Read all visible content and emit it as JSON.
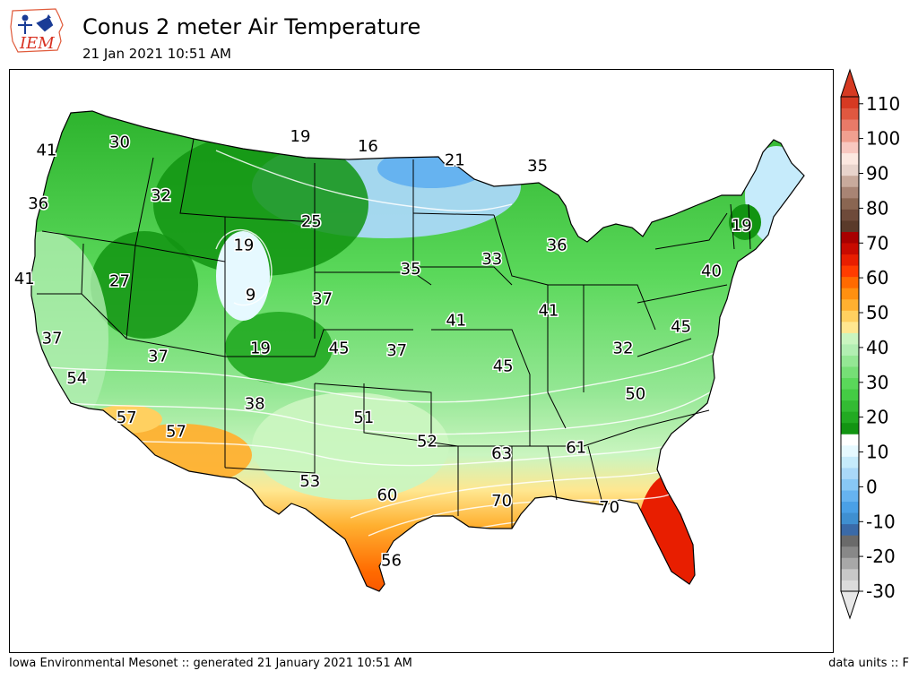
{
  "header": {
    "logo_text": "IEM",
    "title": "Conus 2 meter Air Temperature",
    "subtitle": "21 Jan 2021 10:51 AM"
  },
  "footer": {
    "left": "Iowa Environmental Mesonet :: generated 21 January 2021 10:51 AM",
    "right": "data units :: F"
  },
  "colorbar": {
    "tick_labels": [
      "110",
      "100",
      "90",
      "80",
      "70",
      "60",
      "50",
      "40",
      "30",
      "20",
      "10",
      "0",
      "-10",
      "-20",
      "-30"
    ],
    "colors": [
      "#dcdcdc",
      "#c8c8c8",
      "#a8a8a8",
      "#888888",
      "#6a6a6a",
      "#3a6aa8",
      "#3f8fd0",
      "#4aa0e6",
      "#66b3f0",
      "#88c8f5",
      "#aad8f8",
      "#c6ebfb",
      "#e6f9ff",
      "#ffffff",
      "#129412",
      "#22aa22",
      "#33bb33",
      "#44cc44",
      "#5ad85a",
      "#76df76",
      "#94e794",
      "#b2eeb2",
      "#caf5c0",
      "#ffe790",
      "#ffd060",
      "#ffb030",
      "#ff9010",
      "#ff6a00",
      "#ff3c00",
      "#e81e00",
      "#c80a00",
      "#a80000",
      "#5a3a2a",
      "#6e4a3a",
      "#8a6652",
      "#a88474",
      "#c8aa9c",
      "#e8d4cc",
      "#fce8e0",
      "#f8c8c0",
      "#f0a090",
      "#e87a68",
      "#e05840",
      "#d63a22"
    ]
  },
  "chart_data": {
    "type": "map",
    "title": "Conus 2 meter Air Temperature",
    "units": "F",
    "colorbar_range": [
      -30,
      120
    ],
    "station_values": [
      {
        "value": "41",
        "lon": -122.6,
        "lat": 47.3
      },
      {
        "value": "30",
        "lon": -117.3,
        "lat": 47.7
      },
      {
        "value": "19",
        "lon": -104.2,
        "lat": 48.0
      },
      {
        "value": "16",
        "lon": -99.3,
        "lat": 47.5
      },
      {
        "value": "21",
        "lon": -93.0,
        "lat": 46.8
      },
      {
        "value": "35",
        "lon": -87.0,
        "lat": 46.5
      },
      {
        "value": "36",
        "lon": -123.2,
        "lat": 44.6
      },
      {
        "value": "32",
        "lon": -114.3,
        "lat": 45.0
      },
      {
        "value": "19",
        "lon": -72.2,
        "lat": 43.5
      },
      {
        "value": "41",
        "lon": -124.2,
        "lat": 40.8
      },
      {
        "value": "25",
        "lon": -103.4,
        "lat": 43.7
      },
      {
        "value": "19",
        "lon": -108.3,
        "lat": 42.5
      },
      {
        "value": "35",
        "lon": -96.2,
        "lat": 41.3
      },
      {
        "value": "33",
        "lon": -90.3,
        "lat": 41.8
      },
      {
        "value": "36",
        "lon": -85.6,
        "lat": 42.5
      },
      {
        "value": "27",
        "lon": -117.3,
        "lat": 40.7
      },
      {
        "value": "9",
        "lon": -107.8,
        "lat": 40.0
      },
      {
        "value": "37",
        "lon": -102.6,
        "lat": 39.8
      },
      {
        "value": "40",
        "lon": -74.4,
        "lat": 41.2
      },
      {
        "value": "37",
        "lon": -122.2,
        "lat": 37.8
      },
      {
        "value": "41",
        "lon": -86.2,
        "lat": 39.2
      },
      {
        "value": "41",
        "lon": -92.9,
        "lat": 38.7
      },
      {
        "value": "45",
        "lon": -76.6,
        "lat": 38.4
      },
      {
        "value": "54",
        "lon": -120.4,
        "lat": 35.8
      },
      {
        "value": "37",
        "lon": -114.5,
        "lat": 36.9
      },
      {
        "value": "19",
        "lon": -107.1,
        "lat": 37.3
      },
      {
        "value": "45",
        "lon": -101.4,
        "lat": 37.3
      },
      {
        "value": "37",
        "lon": -97.2,
        "lat": 37.2
      },
      {
        "value": "32",
        "lon": -80.8,
        "lat": 37.3
      },
      {
        "value": "45",
        "lon": -89.5,
        "lat": 36.4
      },
      {
        "value": "57",
        "lon": -116.8,
        "lat": 33.8
      },
      {
        "value": "38",
        "lon": -107.5,
        "lat": 34.5
      },
      {
        "value": "50",
        "lon": -79.9,
        "lat": 35.0
      },
      {
        "value": "57",
        "lon": -113.2,
        "lat": 33.1
      },
      {
        "value": "51",
        "lon": -99.6,
        "lat": 33.8
      },
      {
        "value": "52",
        "lon": -95.0,
        "lat": 32.6
      },
      {
        "value": "63",
        "lon": -89.6,
        "lat": 32.0
      },
      {
        "value": "61",
        "lon": -84.2,
        "lat": 32.3
      },
      {
        "value": "53",
        "lon": -103.5,
        "lat": 30.6
      },
      {
        "value": "60",
        "lon": -97.9,
        "lat": 29.9
      },
      {
        "value": "70",
        "lon": -89.6,
        "lat": 29.6
      },
      {
        "value": "70",
        "lon": -81.8,
        "lat": 29.3
      },
      {
        "value": "56",
        "lon": -97.6,
        "lat": 26.6
      }
    ]
  }
}
